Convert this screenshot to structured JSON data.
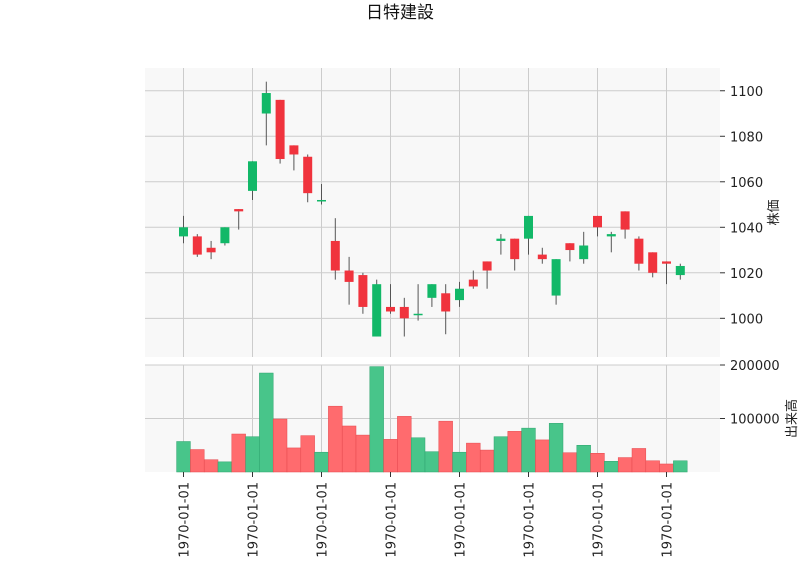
{
  "chart_data": {
    "type": "candlestick",
    "title": "日特建設",
    "price_axis": {
      "label": "株価",
      "ylim": [
        983,
        1110
      ],
      "ticks": [
        1000,
        1020,
        1040,
        1060,
        1080,
        1100
      ]
    },
    "volume_axis": {
      "label": "出来高",
      "ylim": [
        0,
        200000
      ],
      "ticks": [
        100000,
        200000
      ],
      "tick_labels": [
        "100000",
        "200000"
      ]
    },
    "x_tick_labels": [
      "1970-01-01",
      "1970-01-01",
      "1970-01-01",
      "1970-01-01",
      "1970-01-01",
      "1970-01-01",
      "1970-01-01",
      "1970-01-01"
    ],
    "x_tick_indices": [
      0,
      5,
      10,
      15,
      20,
      25,
      30,
      35
    ],
    "grid": true,
    "colors": {
      "up": "#12b868",
      "down": "#f0333d",
      "vol_up": "#48c58a",
      "vol_down": "#ff6b6e",
      "wick": "#555555",
      "panel_bg": "#f8f8f8",
      "grid": "#cccccc"
    },
    "candles": [
      {
        "open": 1036,
        "high": 1045,
        "low": 1033,
        "close": 1040,
        "volume": 57000
      },
      {
        "open": 1036,
        "high": 1037,
        "low": 1027,
        "close": 1028,
        "volume": 42000
      },
      {
        "open": 1031,
        "high": 1034,
        "low": 1026,
        "close": 1029,
        "volume": 23000
      },
      {
        "open": 1033,
        "high": 1040,
        "low": 1032,
        "close": 1040,
        "volume": 19000
      },
      {
        "open": 1048,
        "high": 1048,
        "low": 1039,
        "close": 1047,
        "volume": 71000
      },
      {
        "open": 1056,
        "high": 1069,
        "low": 1052,
        "close": 1069,
        "volume": 66000
      },
      {
        "open": 1090,
        "high": 1104,
        "low": 1076,
        "close": 1099,
        "volume": 185000
      },
      {
        "open": 1096,
        "high": 1096,
        "low": 1068,
        "close": 1070,
        "volume": 99000
      },
      {
        "open": 1076,
        "high": 1076,
        "low": 1065,
        "close": 1072,
        "volume": 45000
      },
      {
        "open": 1071,
        "high": 1072,
        "low": 1051,
        "close": 1055,
        "volume": 68000
      },
      {
        "open": 1052,
        "high": 1059,
        "low": 1050,
        "close": 1052,
        "volume": 37000
      },
      {
        "open": 1034,
        "high": 1044,
        "low": 1017,
        "close": 1021,
        "volume": 123000
      },
      {
        "open": 1021,
        "high": 1027,
        "low": 1006,
        "close": 1016,
        "volume": 86000
      },
      {
        "open": 1019,
        "high": 1020,
        "low": 1002,
        "close": 1005,
        "volume": 69000
      },
      {
        "open": 992,
        "high": 1017,
        "low": 992,
        "close": 1015,
        "volume": 197000
      },
      {
        "open": 1005,
        "high": 1015,
        "low": 1002,
        "close": 1003,
        "volume": 61000
      },
      {
        "open": 1005,
        "high": 1009,
        "low": 992,
        "close": 1000,
        "volume": 104000
      },
      {
        "open": 1002,
        "high": 1015,
        "low": 999,
        "close": 1002,
        "volume": 64000
      },
      {
        "open": 1009,
        "high": 1015,
        "low": 1005,
        "close": 1015,
        "volume": 38000
      },
      {
        "open": 1011,
        "high": 1015,
        "low": 993,
        "close": 1003,
        "volume": 95000
      },
      {
        "open": 1008,
        "high": 1016,
        "low": 1005,
        "close": 1013,
        "volume": 37000
      },
      {
        "open": 1017,
        "high": 1021,
        "low": 1013,
        "close": 1014,
        "volume": 54000
      },
      {
        "open": 1025,
        "high": 1025,
        "low": 1013,
        "close": 1021,
        "volume": 41000
      },
      {
        "open": 1034,
        "high": 1037,
        "low": 1028,
        "close": 1035,
        "volume": 66000
      },
      {
        "open": 1035,
        "high": 1035,
        "low": 1021,
        "close": 1026,
        "volume": 76000
      },
      {
        "open": 1035,
        "high": 1045,
        "low": 1028,
        "close": 1045,
        "volume": 82000
      },
      {
        "open": 1028,
        "high": 1031,
        "low": 1024,
        "close": 1026,
        "volume": 60000
      },
      {
        "open": 1010,
        "high": 1026,
        "low": 1006,
        "close": 1026,
        "volume": 91000
      },
      {
        "open": 1033,
        "high": 1033,
        "low": 1025,
        "close": 1030,
        "volume": 36000
      },
      {
        "open": 1026,
        "high": 1038,
        "low": 1024,
        "close": 1032,
        "volume": 50000
      },
      {
        "open": 1045,
        "high": 1045,
        "low": 1036,
        "close": 1040,
        "volume": 35000
      },
      {
        "open": 1036,
        "high": 1038,
        "low": 1029,
        "close": 1037,
        "volume": 20000
      },
      {
        "open": 1047,
        "high": 1047,
        "low": 1035,
        "close": 1039,
        "volume": 27000
      },
      {
        "open": 1035,
        "high": 1036,
        "low": 1021,
        "close": 1024,
        "volume": 44000
      },
      {
        "open": 1029,
        "high": 1029,
        "low": 1018,
        "close": 1020,
        "volume": 21000
      },
      {
        "open": 1025,
        "high": 1025,
        "low": 1015,
        "close": 1024,
        "volume": 15000
      },
      {
        "open": 1019,
        "high": 1024,
        "low": 1017,
        "close": 1023,
        "volume": 21000
      }
    ]
  }
}
